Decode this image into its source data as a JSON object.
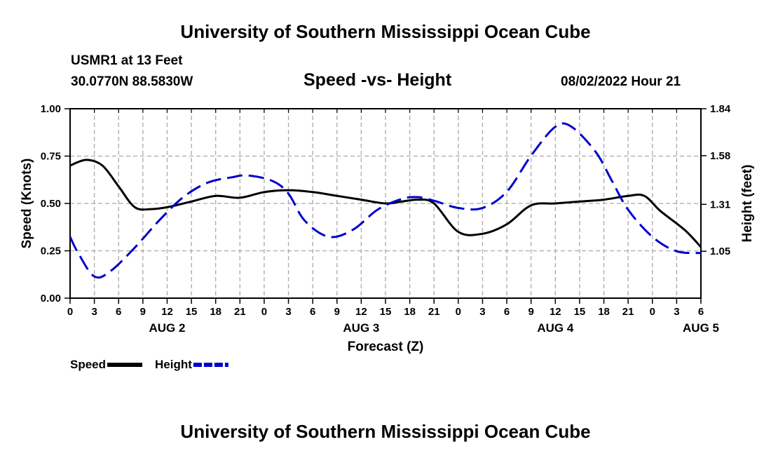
{
  "page": {
    "title_top": "University of Southern Mississippi Ocean Cube",
    "title_bottom": "University of Southern Mississippi Ocean Cube",
    "station": "USMR1 at 13 Feet",
    "coords": "30.0770N  88.5830W",
    "timestamp": "08/02/2022 Hour 21"
  },
  "colors": {
    "speed": "#000000",
    "height": "#0000cc",
    "grid": "#a9a9a9"
  },
  "chart_data": {
    "type": "line",
    "title": "Speed -vs- Height",
    "xlabel": "Forecast (Z)",
    "ylabel": "Speed (Knots)",
    "ylabel_right": "Height (feet)",
    "x_range_hours": [
      0,
      78
    ],
    "x_ticks": [
      "0",
      "3",
      "6",
      "9",
      "12",
      "15",
      "18",
      "21",
      "0",
      "3",
      "6",
      "9",
      "12",
      "15",
      "18",
      "21",
      "0",
      "3",
      "6",
      "9",
      "12",
      "15",
      "18",
      "21",
      "0",
      "3",
      "6"
    ],
    "day_labels": [
      {
        "label": "AUG 2",
        "hour": 12
      },
      {
        "label": "AUG 3",
        "hour": 36
      },
      {
        "label": "AUG 4",
        "hour": 60
      },
      {
        "label": "AUG 5",
        "hour": 78
      }
    ],
    "ylim": [
      0,
      1.0
    ],
    "y_ticks": [
      "0.00",
      "0.25",
      "0.50",
      "0.75",
      "1.00"
    ],
    "ylim_right": [
      0.79,
      1.84
    ],
    "y_ticks_right": [
      {
        "label": "1.05",
        "value": 1.05
      },
      {
        "label": "1.31",
        "value": 1.31
      },
      {
        "label": "1.58",
        "value": 1.58
      },
      {
        "label": "1.84",
        "value": 1.84
      }
    ],
    "grid": true,
    "legend_position": "bottom-left",
    "series": [
      {
        "name": "Speed",
        "axis": "left",
        "style": "solid",
        "x": [
          0,
          2,
          4,
          6,
          8,
          10,
          12,
          15,
          18,
          21,
          24,
          27,
          30,
          33,
          36,
          39,
          41,
          43,
          45,
          48,
          51,
          54,
          57,
          60,
          63,
          66,
          69,
          71,
          73,
          76,
          78
        ],
        "y": [
          0.7,
          0.73,
          0.7,
          0.59,
          0.48,
          0.47,
          0.48,
          0.51,
          0.54,
          0.53,
          0.56,
          0.57,
          0.56,
          0.54,
          0.52,
          0.5,
          0.51,
          0.52,
          0.5,
          0.35,
          0.34,
          0.39,
          0.49,
          0.5,
          0.51,
          0.52,
          0.54,
          0.54,
          0.46,
          0.36,
          0.27
        ]
      },
      {
        "name": "Height",
        "axis": "right",
        "style": "dashed",
        "x": [
          0,
          1,
          3,
          5,
          8,
          11,
          14,
          17,
          20,
          22,
          25,
          27,
          29,
          32,
          35,
          38,
          41,
          43,
          45,
          48,
          51,
          54,
          57,
          60,
          62,
          65,
          67,
          69,
          72,
          75,
          78
        ],
        "y": [
          1.13,
          1.04,
          0.91,
          0.94,
          1.07,
          1.22,
          1.35,
          1.43,
          1.46,
          1.47,
          1.44,
          1.37,
          1.22,
          1.13,
          1.17,
          1.28,
          1.34,
          1.35,
          1.33,
          1.29,
          1.29,
          1.38,
          1.58,
          1.74,
          1.74,
          1.6,
          1.44,
          1.28,
          1.13,
          1.05,
          1.04
        ]
      }
    ]
  }
}
